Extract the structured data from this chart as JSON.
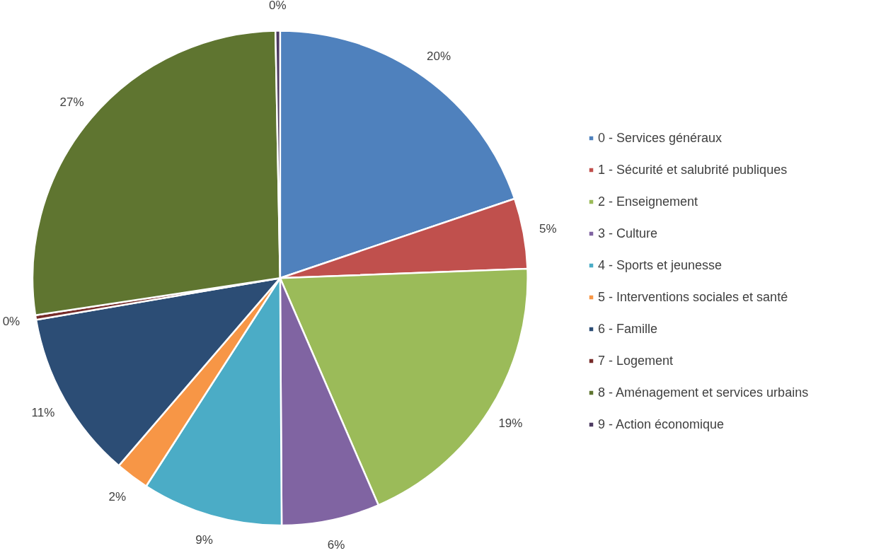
{
  "chart_data": {
    "type": "pie",
    "categories": [
      "0 - Services généraux",
      "1 - Sécurité et salubrité publiques",
      "2 - Enseignement",
      "3 - Culture",
      "4 - Sports et jeunesse",
      "5 - Interventions sociales et santé",
      "6 - Famille",
      "7 - Logement",
      "8 - Aménagement et services urbains",
      "9 - Action économique"
    ],
    "values": [
      19.8,
      4.6,
      19.1,
      6.4,
      9.2,
      2.2,
      11.0,
      0.3,
      27.1,
      0.3
    ],
    "colors": [
      "#4f81bd",
      "#c0504d",
      "#9bbb59",
      "#8064a2",
      "#4bacc6",
      "#f79646",
      "#2c4d75",
      "#772c2a",
      "#5f7530",
      "#4d3b62"
    ],
    "value_labels": [
      "20%",
      "5%",
      "19%",
      "6%",
      "9%",
      "2%",
      "11%",
      "0%",
      "27%",
      "0%"
    ],
    "legend": "right"
  }
}
